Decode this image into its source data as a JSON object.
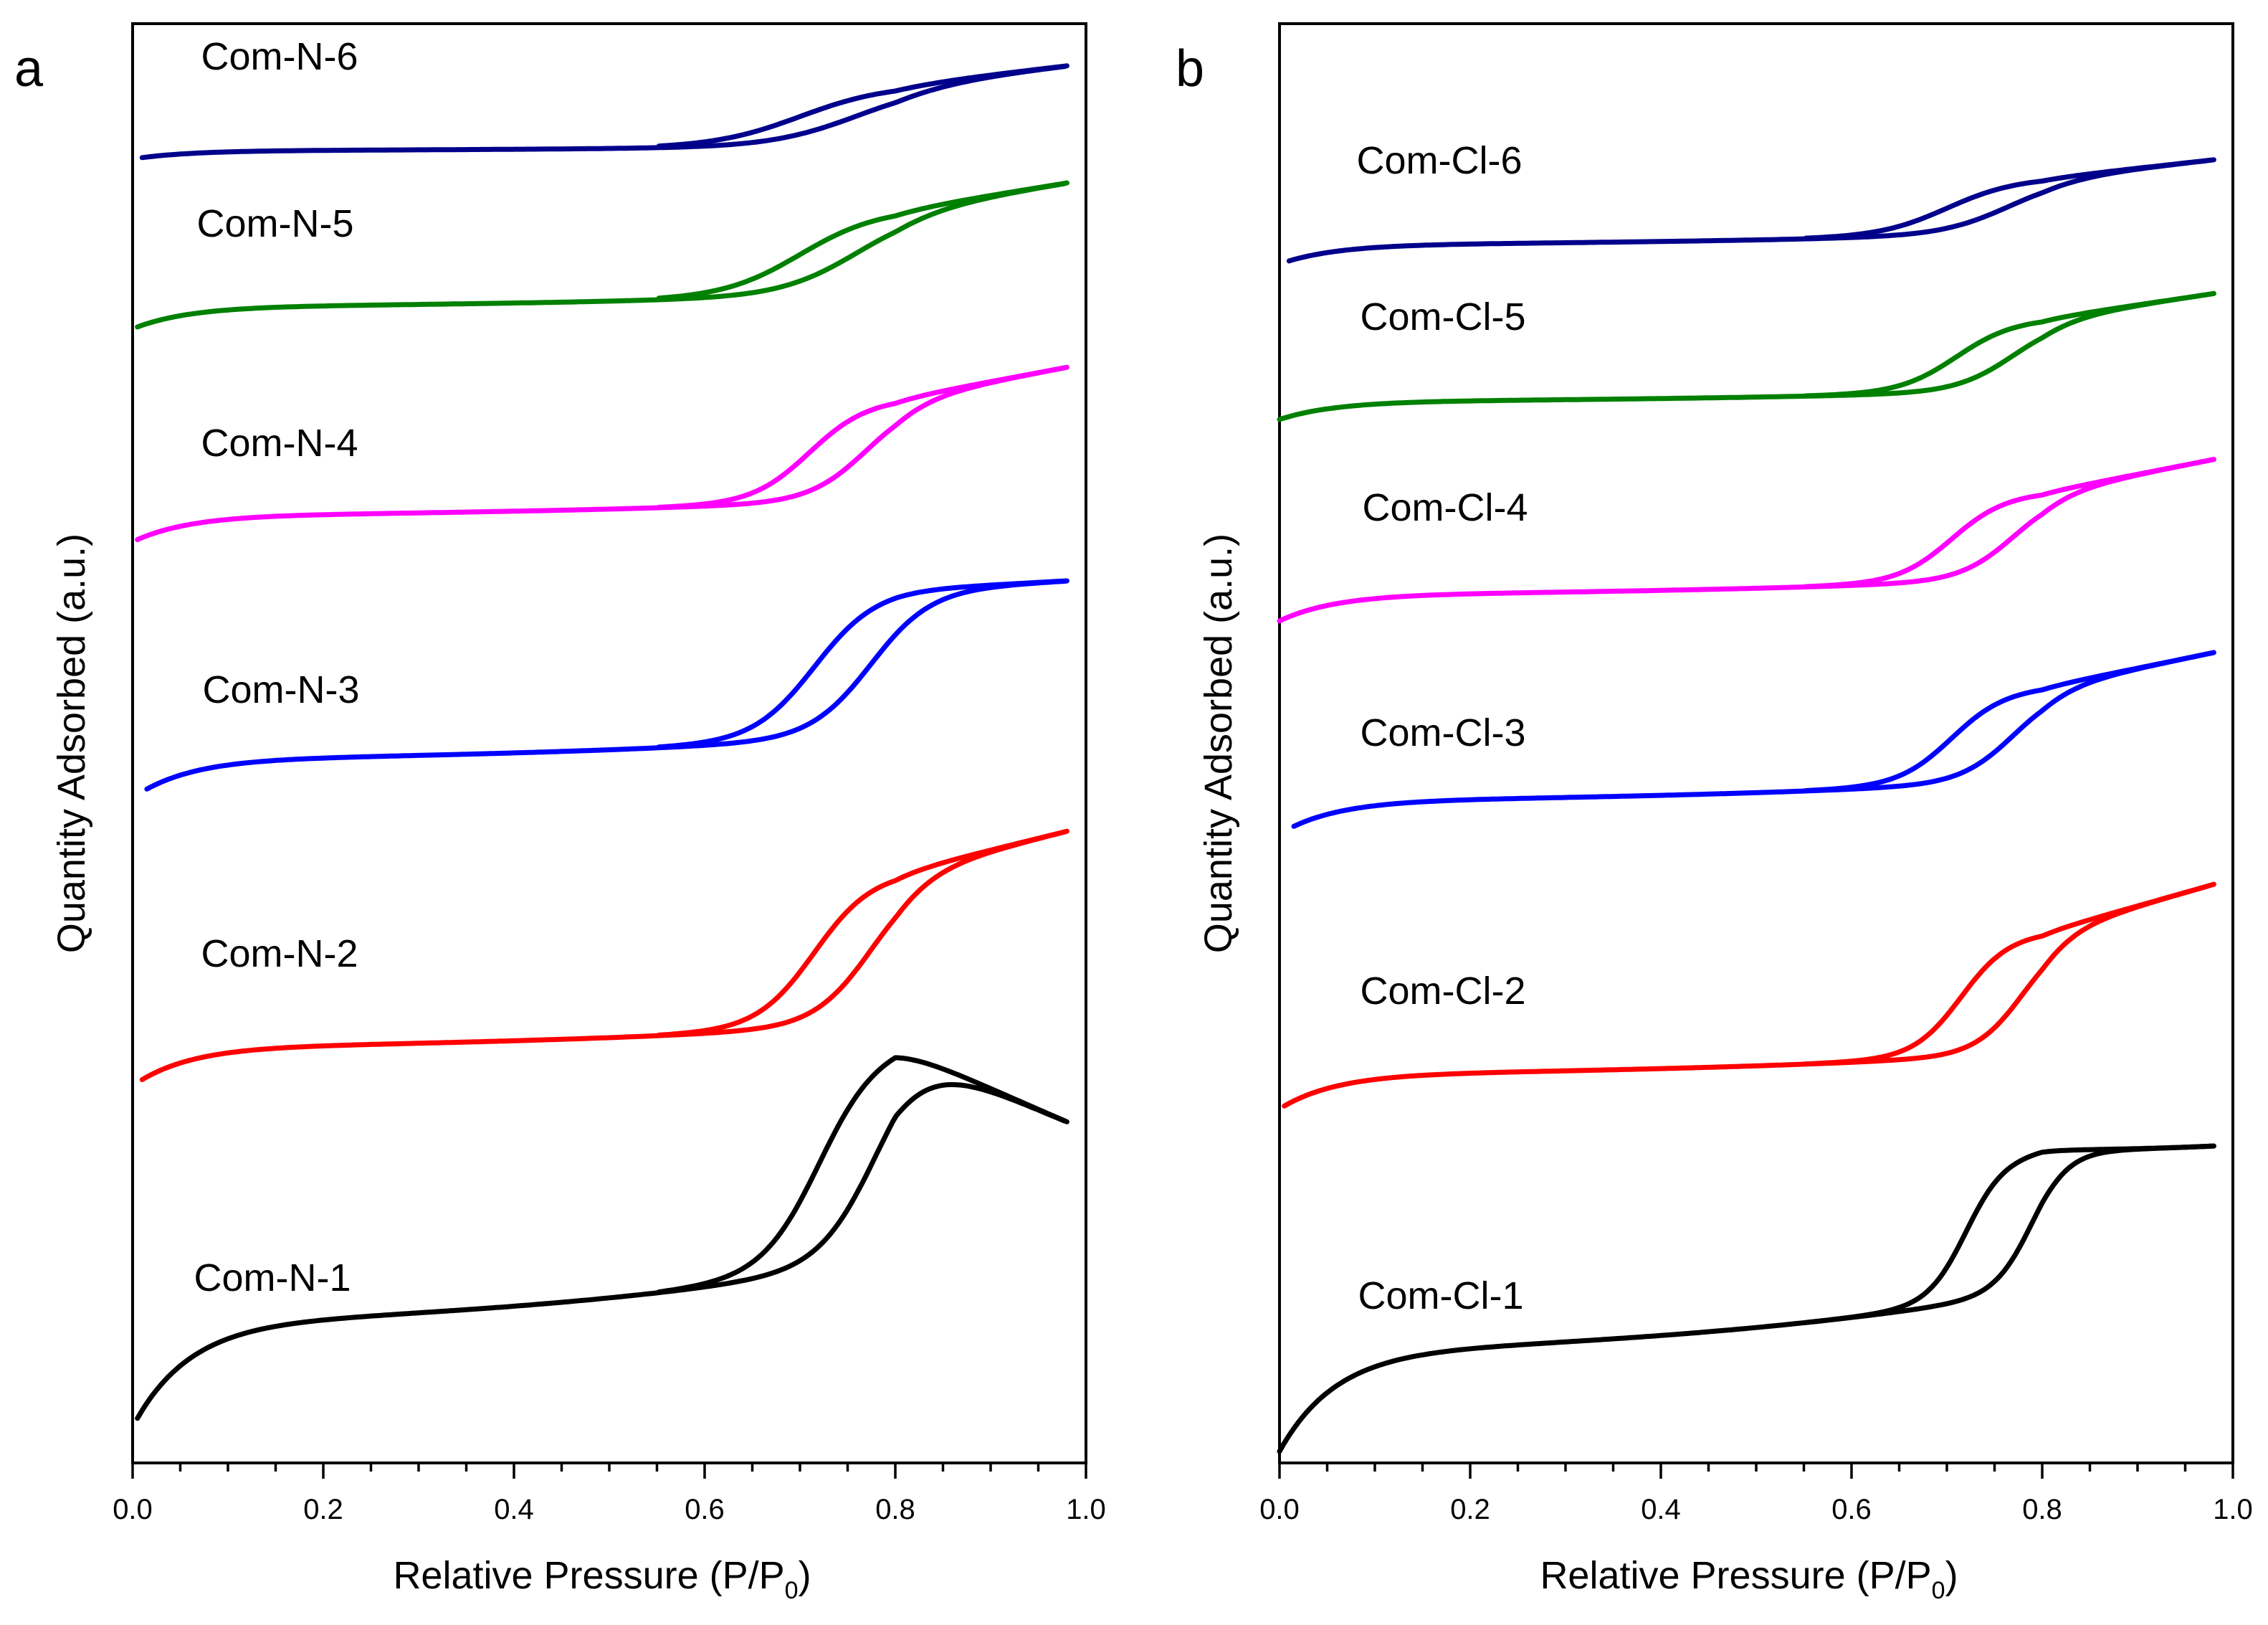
{
  "chart_data": [
    {
      "type": "line",
      "panel": "a",
      "xlabel": "Relative Pressure (P/P",
      "xlabel_sub": "0",
      "xlabel_end": ")",
      "ylabel": "Quantity Adsorbed (a.u.)",
      "xlim": [
        0.0,
        1.0
      ],
      "ylim": [
        0,
        100
      ],
      "xticks": [
        "0.0",
        "0.2",
        "0.4",
        "0.6",
        "0.8",
        "1.0"
      ],
      "series": [
        {
          "name": "Com-N-1",
          "color": "#000000",
          "offset": 2.5,
          "x0": 0.005,
          "y_start": 0,
          "y_low": 7.5,
          "step": 15,
          "y_end": 21.5,
          "ads_mid": 0.78,
          "des_mid": 0.72,
          "width": 0.03
        },
        {
          "name": "Com-N-2",
          "color": "#ff0000",
          "offset": 26.2,
          "x0": 0.01,
          "y_start": 0,
          "y_low": 2.8,
          "step": 10.5,
          "y_end": 17.8,
          "ads_mid": 0.775,
          "des_mid": 0.715,
          "width": 0.03
        },
        {
          "name": "Com-N-3",
          "color": "#0000ff",
          "offset": 46.2,
          "x0": 0.015,
          "y_start": 0,
          "y_low": 2.8,
          "step": 10.2,
          "y_end": 15.2,
          "ads_mid": 0.775,
          "des_mid": 0.715,
          "width": 0.032
        },
        {
          "name": "Com-N-4",
          "color": "#ff00ff",
          "offset": 64.0,
          "x0": 0.005,
          "y_start": 0,
          "y_low": 1.9,
          "step": 7.0,
          "y_end": 12.2,
          "ads_mid": 0.77,
          "des_mid": 0.71,
          "width": 0.03
        },
        {
          "name": "Com-N-5",
          "color": "#008000",
          "offset": 78.8,
          "x0": 0.005,
          "y_start": 0,
          "y_low": 1.6,
          "step": 5.8,
          "y_end": 10.2,
          "ads_mid": 0.76,
          "des_mid": 0.7,
          "width": 0.04
        },
        {
          "name": "Com-N-6",
          "color": "#00008b",
          "offset": 90.6,
          "x0": 0.01,
          "y_start": 0,
          "y_low": 0.6,
          "step": 4.2,
          "y_end": 6.5,
          "ads_mid": 0.76,
          "des_mid": 0.7,
          "width": 0.045
        }
      ]
    },
    {
      "type": "line",
      "panel": "b",
      "xlabel": "Relative Pressure (P/P",
      "xlabel_sub": "0",
      "xlabel_end": ")",
      "ylabel": "Quantity Adsorbed (a.u.)",
      "xlim": [
        0.0,
        1.0
      ],
      "ylim": [
        0,
        100
      ],
      "xticks": [
        "0.0",
        "0.2",
        "0.4",
        "0.6",
        "0.8",
        "1.0"
      ],
      "series": [
        {
          "name": "Com-Cl-1",
          "color": "#000000",
          "offset": 0.8,
          "x0": 0.0,
          "y_start": 0,
          "y_low": 7.2,
          "step": 9.8,
          "y_end": 21.5,
          "ads_mid": 0.79,
          "des_mid": 0.72,
          "width": 0.02
        },
        {
          "name": "Com-Cl-2",
          "color": "#ff0000",
          "offset": 24.6,
          "x0": 0.005,
          "y_start": 0,
          "y_low": 2.5,
          "step": 8.4,
          "y_end": 15.7,
          "ads_mid": 0.78,
          "des_mid": 0.715,
          "width": 0.025
        },
        {
          "name": "Com-Cl-3",
          "color": "#0000ff",
          "offset": 43.7,
          "x0": 0.015,
          "y_start": 0,
          "y_low": 2.4,
          "step": 6.5,
          "y_end": 12.7,
          "ads_mid": 0.77,
          "des_mid": 0.705,
          "width": 0.028
        },
        {
          "name": "Com-Cl-4",
          "color": "#ff00ff",
          "offset": 58.5,
          "x0": 0.0,
          "y_start": 0,
          "y_low": 1.9,
          "step": 6.0,
          "y_end": 11.3,
          "ads_mid": 0.77,
          "des_mid": 0.705,
          "width": 0.028
        },
        {
          "name": "Com-Cl-5",
          "color": "#008000",
          "offset": 72.5,
          "x0": 0.0,
          "y_start": 0,
          "y_low": 1.3,
          "step": 5.0,
          "y_end": 8.8,
          "ads_mid": 0.77,
          "des_mid": 0.71,
          "width": 0.03
        },
        {
          "name": "Com-Cl-6",
          "color": "#00008b",
          "offset": 83.3,
          "x0": 0.01,
          "y_start": 0,
          "y_low": 1.4,
          "step": 3.8,
          "y_end": 7.3,
          "ads_mid": 0.765,
          "des_mid": 0.7,
          "width": 0.035
        }
      ]
    }
  ]
}
